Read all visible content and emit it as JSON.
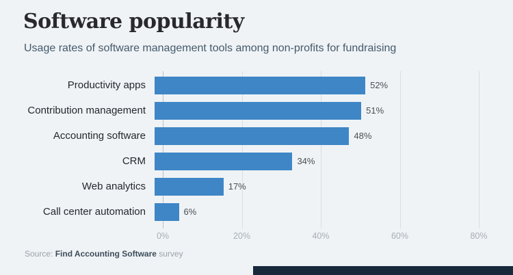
{
  "header": {
    "title": "Software popularity",
    "subtitle": "Usage rates of software management tools among non-profits for fundraising"
  },
  "source": {
    "prefix": "Source: ",
    "name": "Find Accounting Software",
    "suffix": " survey"
  },
  "colors": {
    "bar": "#3e86c6",
    "background": "#eff3f6",
    "footer_accent": "#17293b",
    "grid": "#d8dee3",
    "tick_text": "#a6aeb5"
  },
  "chart_data": {
    "type": "bar",
    "orientation": "horizontal",
    "title": "Software popularity",
    "subtitle": "Usage rates of software management tools among non-profits for fundraising",
    "categories": [
      "Productivity apps",
      "Contribution management",
      "Accounting software",
      "CRM",
      "Web analytics",
      "Call center automation"
    ],
    "values": [
      52,
      51,
      48,
      34,
      17,
      6
    ],
    "value_labels": [
      "52%",
      "51%",
      "48%",
      "34%",
      "17%",
      "6%"
    ],
    "xlabel": "",
    "ylabel": "",
    "xlim": [
      0,
      80
    ],
    "ticks": [
      0,
      20,
      40,
      60,
      80
    ],
    "tick_labels": [
      "0%",
      "20%",
      "40%",
      "60%",
      "80%"
    ],
    "grid": true,
    "legend": false
  }
}
